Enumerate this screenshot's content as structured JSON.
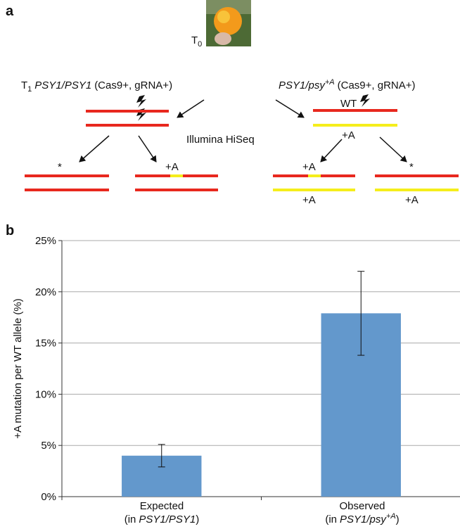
{
  "diagram": {
    "label": "a",
    "t0": {
      "text": "T",
      "sub": "0"
    },
    "left_title": {
      "text": "T",
      "sub": "1",
      "gene": "PSY1/PSY1",
      "suffix": "(Cas9+, gRNA+)"
    },
    "right_title": {
      "gene": "PSY1/psy",
      "sup": "+A",
      "suffix": "(Cas9+, gRNA+)"
    },
    "wt": "WT",
    "sequencer": "Illumina HiSeq",
    "allele_labels": [
      "*",
      "+A",
      "+A",
      "+A",
      "+A",
      "*",
      "+A"
    ]
  },
  "chart_data": {
    "type": "bar",
    "panel_label": "b",
    "ylabel": "+A mutation per WT allele (%)",
    "categories": [
      "Expected",
      "Observed"
    ],
    "category_sublabels": [
      {
        "open": "(in",
        "gene": "PSY1/PSY1",
        "close": ")"
      },
      {
        "open": "(in",
        "gene": "PSY1/psy",
        "sup": "+A",
        "close": ")"
      }
    ],
    "values": [
      4,
      17.9
    ],
    "errors": [
      1.1,
      4.1
    ],
    "color": "#6398cc",
    "ylim": [
      0,
      25
    ],
    "yticks": [
      {
        "value": 0,
        "label": "0%"
      },
      {
        "value": 5,
        "label": "5%"
      },
      {
        "value": 10,
        "label": "10%"
      },
      {
        "value": 15,
        "label": "15%"
      },
      {
        "value": 20,
        "label": "20%"
      },
      {
        "value": 25,
        "label": "25%"
      }
    ],
    "grid": true
  }
}
